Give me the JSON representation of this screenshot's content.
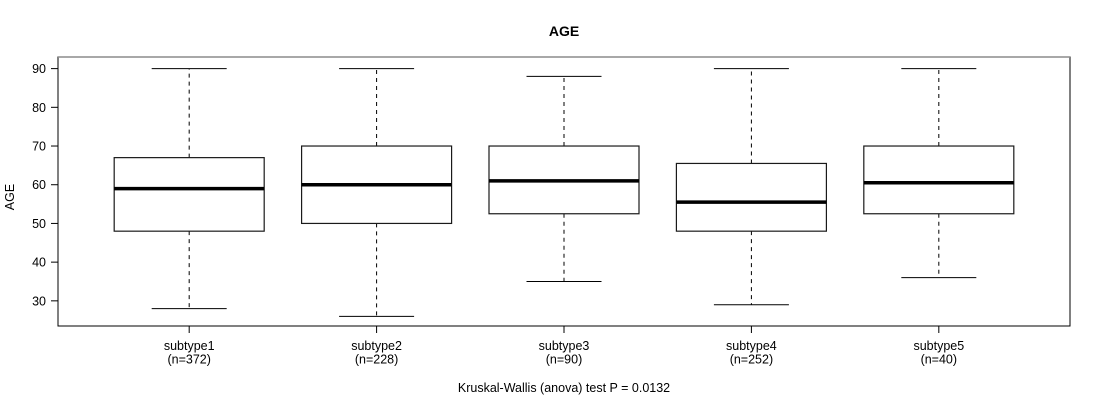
{
  "background": "#ffffff",
  "foreground": "#000000",
  "frame_top_edge_color": "#8c8c8c",
  "chart_data": {
    "type": "boxplot",
    "title": "AGE",
    "ylabel": "AGE",
    "xlabel": "",
    "caption": "Kruskal-Wallis (anova) test P = 0.0132",
    "grid": false,
    "ylim": [
      23.5,
      93
    ],
    "y_ticks": [
      30,
      40,
      50,
      60,
      70,
      80,
      90
    ],
    "whisker_style": "dashed",
    "groups": [
      {
        "label": "subtype1",
        "sublabel": "(n=372)",
        "n": 372,
        "whisker_low": 28,
        "q1": 48,
        "median": 59,
        "q3": 67,
        "whisker_high": 90
      },
      {
        "label": "subtype2",
        "sublabel": "(n=228)",
        "n": 228,
        "whisker_low": 26,
        "q1": 50,
        "median": 60,
        "q3": 70,
        "whisker_high": 90
      },
      {
        "label": "subtype3",
        "sublabel": "(n=90)",
        "n": 90,
        "whisker_low": 35,
        "q1": 52.5,
        "median": 61,
        "q3": 70,
        "whisker_high": 88
      },
      {
        "label": "subtype4",
        "sublabel": "(n=252)",
        "n": 252,
        "whisker_low": 29,
        "q1": 48,
        "median": 55.5,
        "q3": 65.5,
        "whisker_high": 90
      },
      {
        "label": "subtype5",
        "sublabel": "(n=40)",
        "n": 40,
        "whisker_low": 36,
        "q1": 52.5,
        "median": 60.5,
        "q3": 70,
        "whisker_high": 90
      }
    ]
  }
}
